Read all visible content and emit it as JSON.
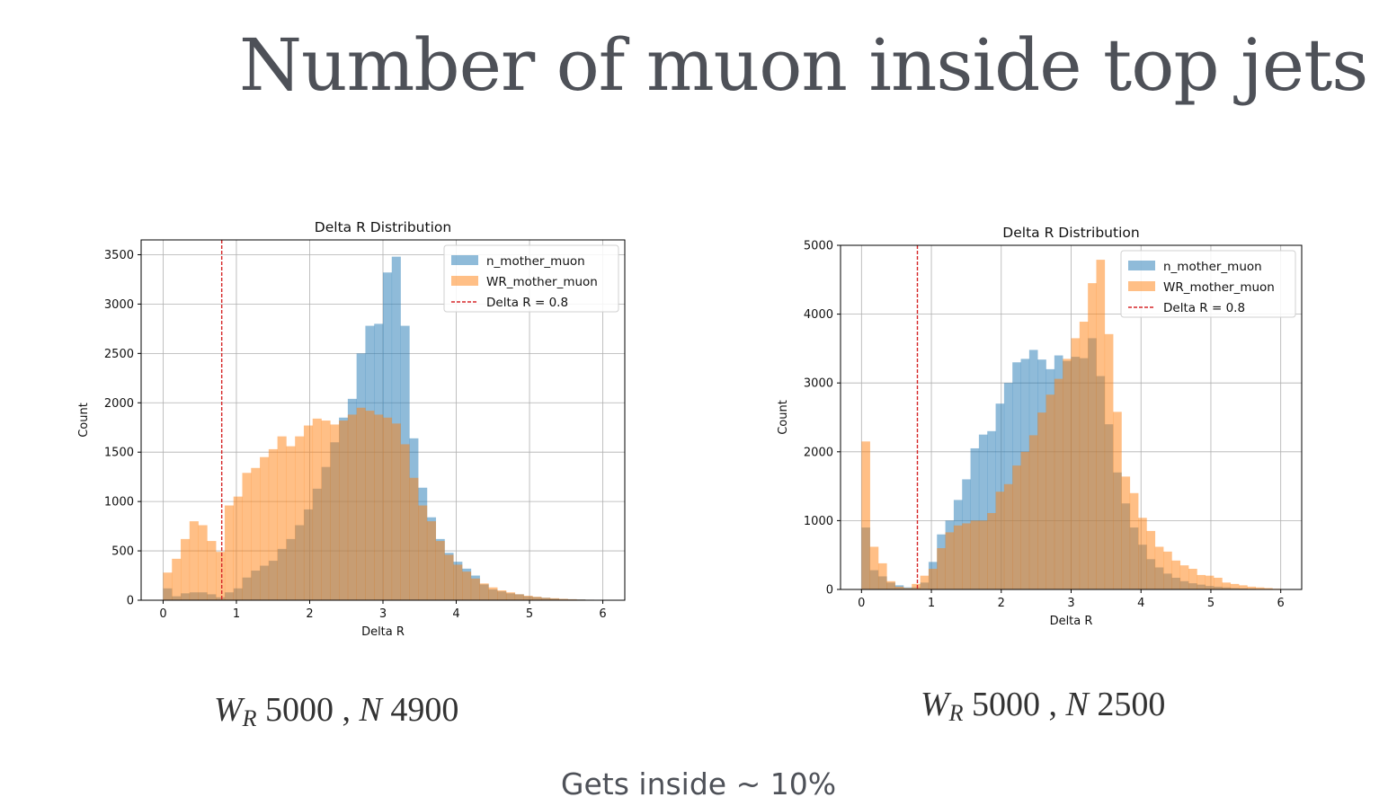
{
  "slide": {
    "title": "Number of muon inside top jets",
    "footer": "Gets inside ~ 10%"
  },
  "captions": [
    {
      "w_symbol": "W",
      "w_sub": "R",
      "w_value": "5000",
      "sep": ",",
      "n_symbol": "N",
      "n_value": "4900"
    },
    {
      "w_symbol": "W",
      "w_sub": "R",
      "w_value": "5000",
      "sep": ",",
      "n_symbol": "N",
      "n_value": "2500"
    }
  ],
  "colors": {
    "blue": "#1f77b4",
    "orange": "#ff7f0e",
    "cutline": "#d62728"
  },
  "chart_data": [
    {
      "type": "bar",
      "title": "Delta R Distribution",
      "xlabel": "Delta R",
      "ylabel": "Count",
      "xlim": [
        -0.3,
        6.3
      ],
      "ylim": [
        0,
        3650
      ],
      "xticks": [
        0,
        1,
        2,
        3,
        4,
        5,
        6
      ],
      "yticks": [
        0,
        500,
        1000,
        1500,
        2000,
        2500,
        3000,
        3500
      ],
      "grid": true,
      "legend_position": "top-right",
      "bin_start": 0,
      "bin_width": 0.12,
      "cut": {
        "x": 0.8,
        "label": "Delta R = 0.8"
      },
      "series": [
        {
          "name": "n_mother_muon",
          "color": "#1f77b4",
          "values": [
            120,
            40,
            70,
            80,
            80,
            60,
            30,
            80,
            120,
            230,
            300,
            350,
            400,
            520,
            620,
            760,
            920,
            1130,
            1350,
            1600,
            1850,
            2040,
            2500,
            2780,
            2800,
            3320,
            3480,
            2780,
            1640,
            1140,
            840,
            620,
            480,
            390,
            320,
            250,
            160,
            110,
            90,
            70,
            60,
            40,
            32,
            25,
            18,
            13,
            10,
            8,
            5,
            3
          ]
        },
        {
          "name": "WR_mother_muon",
          "color": "#ff7f0e",
          "values": [
            280,
            420,
            620,
            800,
            760,
            600,
            490,
            960,
            1050,
            1290,
            1340,
            1450,
            1530,
            1660,
            1560,
            1660,
            1770,
            1840,
            1820,
            1780,
            1820,
            1880,
            1950,
            1920,
            1880,
            1850,
            1790,
            1580,
            1240,
            960,
            800,
            600,
            460,
            360,
            290,
            220,
            170,
            130,
            100,
            80,
            60,
            45,
            35,
            25,
            20,
            14,
            10,
            7,
            5,
            3
          ]
        }
      ]
    },
    {
      "type": "bar",
      "title": "Delta R Distribution",
      "xlabel": "Delta R",
      "ylabel": "Count",
      "xlim": [
        -0.3,
        6.3
      ],
      "ylim": [
        0,
        5000
      ],
      "xticks": [
        0,
        1,
        2,
        3,
        4,
        5,
        6
      ],
      "yticks": [
        0,
        1000,
        2000,
        3000,
        4000,
        5000
      ],
      "grid": true,
      "legend_position": "top-right",
      "bin_start": 0,
      "bin_width": 0.12,
      "cut": {
        "x": 0.8,
        "label": "Delta R = 0.8"
      },
      "series": [
        {
          "name": "n_mother_muon",
          "color": "#1f77b4",
          "values": [
            900,
            280,
            190,
            100,
            60,
            30,
            30,
            100,
            400,
            800,
            1000,
            1300,
            1600,
            2050,
            2250,
            2300,
            2700,
            3000,
            3300,
            3350,
            3480,
            3340,
            3200,
            3400,
            3320,
            3380,
            3360,
            3650,
            3100,
            2400,
            1700,
            1250,
            900,
            650,
            440,
            320,
            230,
            170,
            120,
            90,
            70,
            50,
            40,
            30,
            20,
            15,
            10,
            7,
            5,
            3
          ]
        },
        {
          "name": "WR_mother_muon",
          "color": "#ff7f0e",
          "values": [
            2150,
            620,
            380,
            120,
            40,
            20,
            80,
            200,
            300,
            600,
            830,
            930,
            960,
            1000,
            1000,
            1110,
            1420,
            1530,
            1800,
            2000,
            2240,
            2570,
            2830,
            3060,
            3350,
            3650,
            3890,
            4450,
            4790,
            3710,
            2580,
            1640,
            1400,
            1040,
            850,
            620,
            550,
            420,
            350,
            300,
            210,
            200,
            170,
            100,
            80,
            60,
            40,
            30,
            20,
            10
          ]
        }
      ]
    }
  ]
}
